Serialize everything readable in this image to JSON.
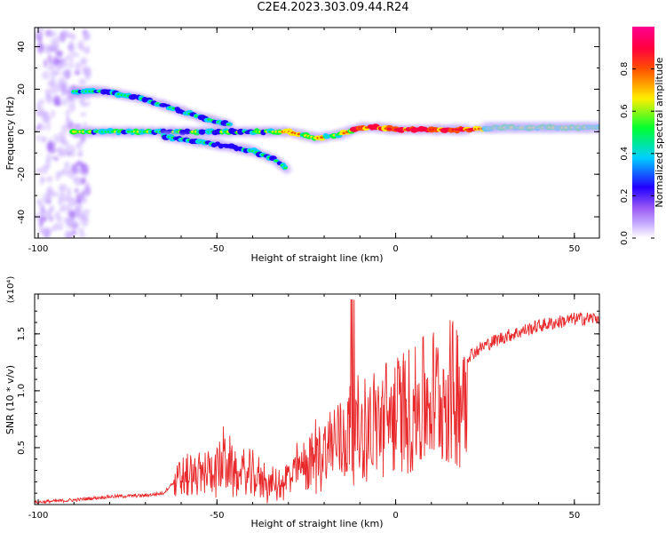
{
  "title": "C2E4.2023.303.09.44.R24",
  "chart_data": [
    {
      "type": "heatmap",
      "xlabel": "Height of straight line (km)",
      "ylabel": "Frequency (Hz)",
      "xlim": [
        -101,
        57
      ],
      "ylim": [
        -50,
        49
      ],
      "xticks": [
        -100,
        -50,
        0,
        50
      ],
      "yticks": [
        -40,
        -20,
        0,
        20,
        40
      ],
      "colorbar": {
        "label": "Normalized spectral amplitude",
        "range": [
          0,
          1
        ],
        "ticks": [
          "0.0",
          "0.2",
          "0.4",
          "0.6",
          "0.8"
        ],
        "colormap": [
          "#ffffff",
          "#9b5cf5",
          "#2200ff",
          "#00d0ff",
          "#00ff30",
          "#ffee00",
          "#ff5000",
          "#ff0040"
        ]
      },
      "branches": [
        {
          "name": "upper",
          "points": [
            [
              -90,
              19
            ],
            [
              -82,
              19
            ],
            [
              -72,
              16
            ],
            [
              -64,
              12
            ],
            [
              -55,
              7
            ],
            [
              -46,
              3
            ]
          ]
        },
        {
          "name": "main",
          "points": [
            [
              -90,
              0
            ],
            [
              -70,
              0
            ],
            [
              -60,
              0
            ],
            [
              -50,
              0
            ],
            [
              -40,
              0
            ],
            [
              -30,
              0
            ],
            [
              -22,
              -3
            ],
            [
              -15,
              -1
            ],
            [
              -10,
              2
            ],
            [
              -5,
              2
            ],
            [
              0,
              1
            ],
            [
              10,
              1
            ],
            [
              20,
              1
            ],
            [
              30,
              2
            ],
            [
              40,
              2
            ],
            [
              57,
              2
            ]
          ]
        },
        {
          "name": "lower",
          "points": [
            [
              -65,
              -2
            ],
            [
              -50,
              -6
            ],
            [
              -40,
              -9
            ],
            [
              -34,
              -13
            ],
            [
              -30,
              -18
            ]
          ]
        }
      ]
    },
    {
      "type": "line",
      "xlabel": "Height of straight line (km)",
      "ylabel": "SNR (10 * v/v)",
      "scale_label": "(x10⁴)",
      "xlim": [
        -101,
        57
      ],
      "ylim": [
        0,
        1.85
      ],
      "xticks": [
        -100,
        -50,
        0,
        50
      ],
      "yticks": [
        0.5,
        1.0,
        1.5
      ],
      "line_color": "#e8282a",
      "series": [
        {
          "x": [
            -101,
            -90,
            -80,
            -70,
            -65,
            -62,
            -60,
            -55,
            -50,
            -48,
            -45,
            -40,
            -35,
            -32,
            -30,
            -25,
            -20,
            -17,
            -15,
            -13,
            -10,
            -5,
            0,
            5,
            10,
            15,
            20,
            25,
            30,
            35,
            40,
            45,
            50,
            57
          ],
          "y": [
            0.02,
            0.04,
            0.07,
            0.08,
            0.1,
            0.2,
            0.3,
            0.32,
            0.4,
            0.48,
            0.35,
            0.32,
            0.22,
            0.2,
            0.3,
            0.45,
            0.6,
            0.7,
            0.75,
            0.8,
            0.8,
            0.9,
            1.0,
            1.05,
            1.15,
            1.2,
            1.3,
            1.4,
            1.47,
            1.52,
            1.57,
            1.6,
            1.63,
            1.64
          ]
        }
      ]
    }
  ]
}
